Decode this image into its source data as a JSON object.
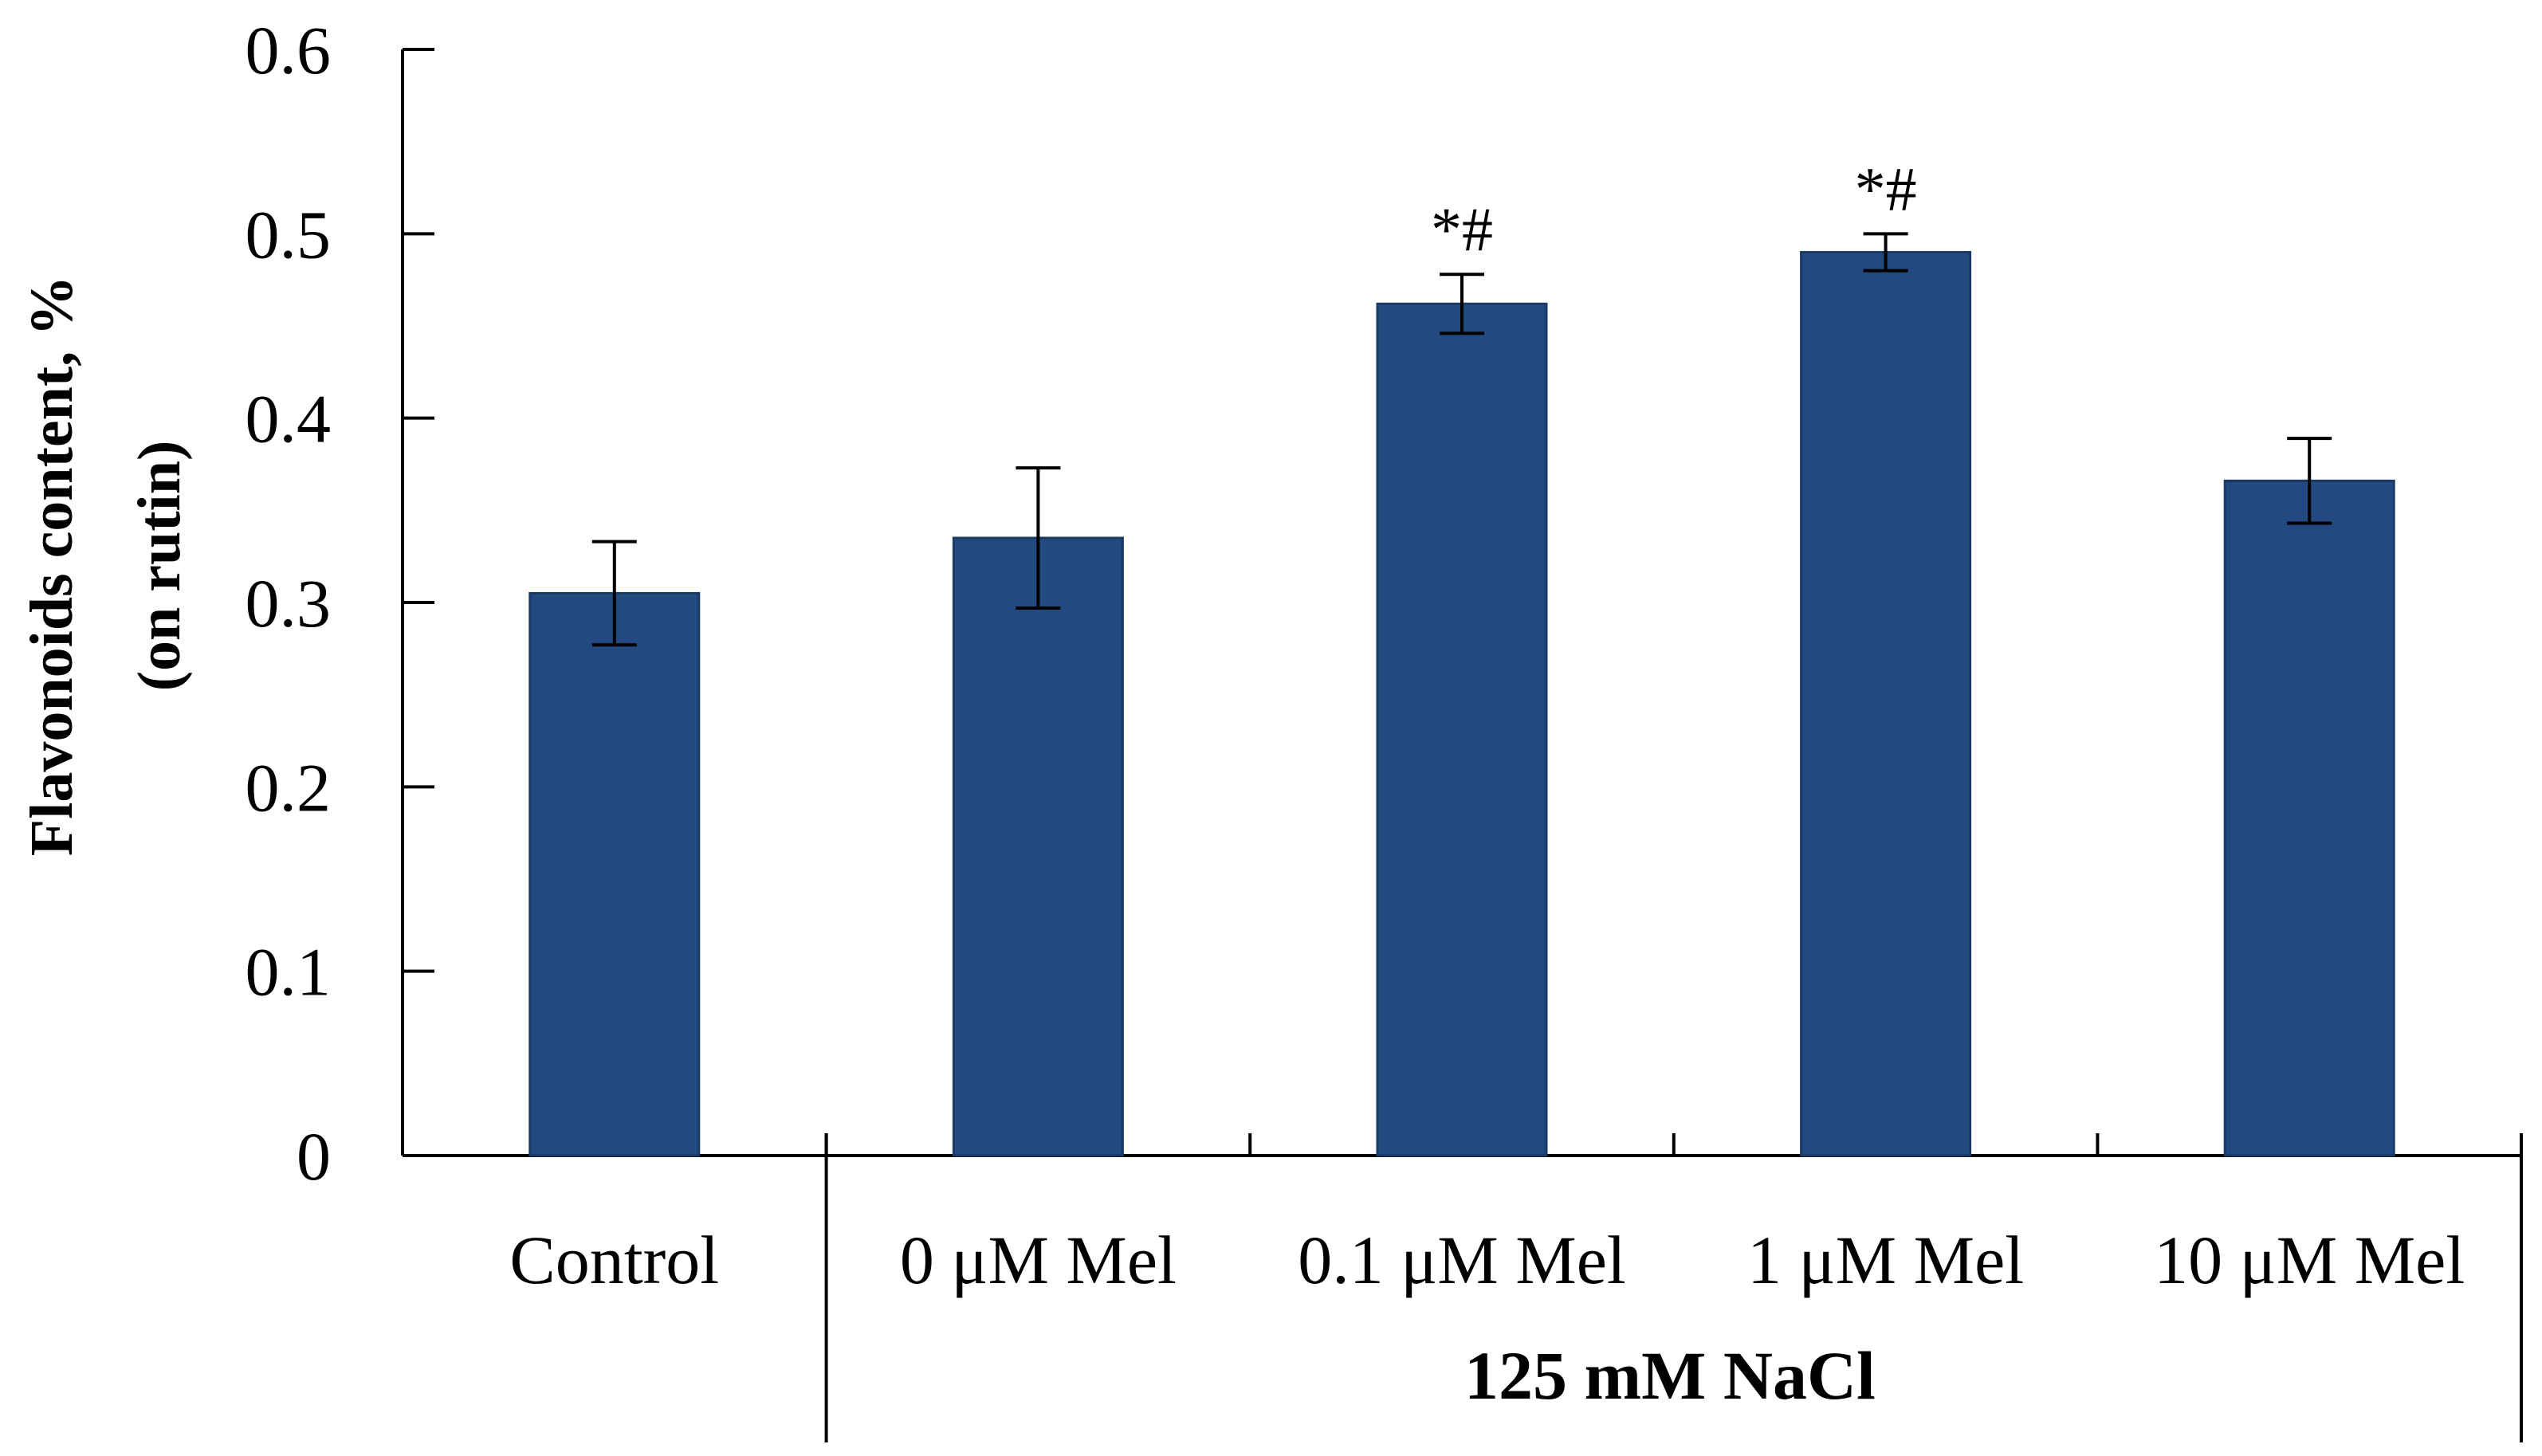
{
  "chart_data": {
    "type": "bar",
    "categories": [
      "Control",
      "0 μM Mel",
      "0.1 μM Mel",
      "1 μM Mel",
      "10 μM Mel"
    ],
    "values": [
      0.305,
      0.335,
      0.462,
      0.49,
      0.366
    ],
    "errors": [
      0.028,
      0.038,
      0.016,
      0.01,
      0.023
    ],
    "annotations": [
      "",
      "",
      "*#",
      "*#",
      ""
    ],
    "title": "",
    "xlabel": "",
    "ylabel_line1": "Flavonoids content,  %",
    "ylabel_line2": "(on rutin)",
    "ylim": [
      0,
      0.6
    ],
    "yticks": [
      "0",
      "0.1",
      "0.2",
      "0.3",
      "0.4",
      "0.5",
      "0.6"
    ],
    "group_label": "125 mM NaCl",
    "grid": false,
    "legend": "none",
    "bar_color": "#234a80"
  }
}
